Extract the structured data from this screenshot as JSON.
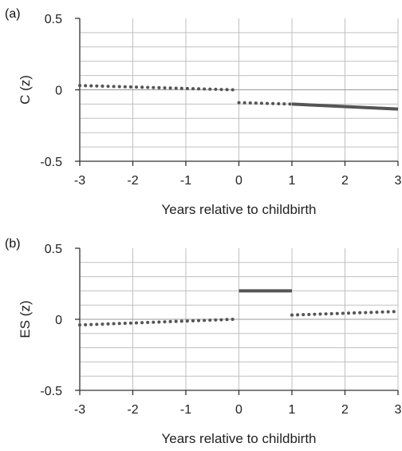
{
  "chart_data": [
    {
      "type": "line",
      "panel_label": "(a)",
      "xlabel": "Years relative to childbirth",
      "ylabel": "C (z)",
      "xlim": [
        -3,
        3
      ],
      "ylim": [
        -0.5,
        0.5
      ],
      "xticks": [
        "-3",
        "-2",
        "-1",
        "0",
        "1",
        "2",
        "3"
      ],
      "yticks": [
        "-0.5",
        "0",
        "0.5"
      ],
      "grid": true,
      "series": [
        {
          "style": "dotted",
          "x": [
            -3,
            -0.1
          ],
          "y": [
            0.03,
            0.0
          ]
        },
        {
          "style": "dotted",
          "x": [
            0,
            1
          ],
          "y": [
            -0.09,
            -0.1
          ]
        },
        {
          "style": "solid",
          "x": [
            1,
            3
          ],
          "y": [
            -0.1,
            -0.135
          ]
        }
      ]
    },
    {
      "type": "line",
      "panel_label": "(b)",
      "xlabel": "Years relative to childbirth",
      "ylabel": "ES (z)",
      "xlim": [
        -3,
        3
      ],
      "ylim": [
        -0.5,
        0.5
      ],
      "xticks": [
        "-3",
        "-2",
        "-1",
        "0",
        "1",
        "2",
        "3"
      ],
      "yticks": [
        "-0.5",
        "0",
        "0.5"
      ],
      "grid": true,
      "series": [
        {
          "style": "dotted",
          "x": [
            -3,
            -0.1
          ],
          "y": [
            -0.04,
            0.0
          ]
        },
        {
          "style": "solid",
          "x": [
            0,
            1
          ],
          "y": [
            0.2,
            0.2
          ]
        },
        {
          "style": "dotted",
          "x": [
            1,
            3
          ],
          "y": [
            0.03,
            0.055
          ]
        }
      ]
    }
  ],
  "colors": {
    "line": "#555555",
    "grid": "#c0c0c0",
    "axis": "#333333"
  }
}
